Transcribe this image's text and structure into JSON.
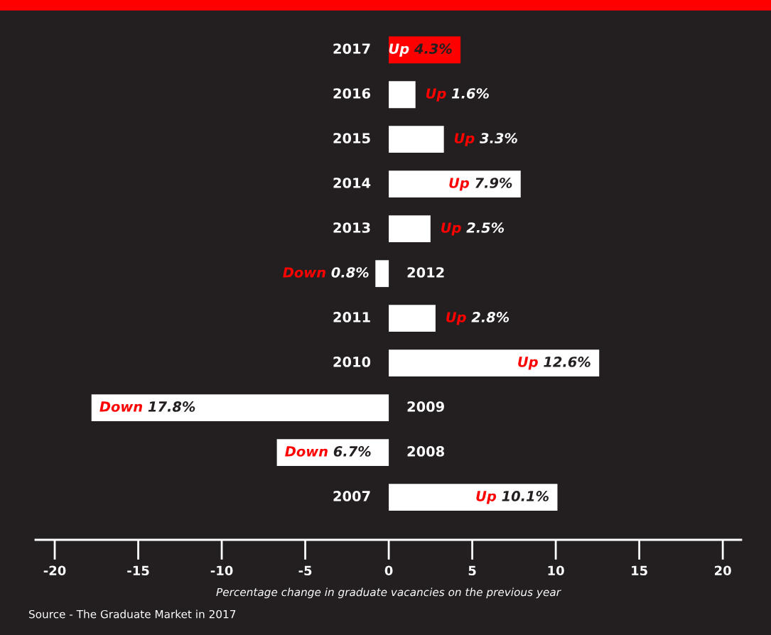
{
  "chart_data": {
    "type": "bar",
    "orientation": "horizontal",
    "categories": [
      "2017",
      "2016",
      "2015",
      "2014",
      "2013",
      "2012",
      "2011",
      "2010",
      "2009",
      "2008",
      "2007"
    ],
    "values": [
      4.3,
      1.6,
      3.3,
      7.9,
      2.5,
      -0.8,
      2.8,
      12.6,
      -17.8,
      -6.7,
      10.1
    ],
    "colors": [
      "#ff0000",
      "#ffffff",
      "#ffffff",
      "#ffffff",
      "#ffffff",
      "#ffffff",
      "#ffffff",
      "#ffffff",
      "#ffffff",
      "#ffffff",
      "#ffffff"
    ],
    "value_labels": [
      "Up 4.3%",
      "Up 1.6%",
      "Up 3.3%",
      "Up 7.9%",
      "Up 2.5%",
      "Down 0.8%",
      "Up 2.8%",
      "Up 12.6%",
      "Down 17.8%",
      "Down 6.7%",
      "Up 10.1%"
    ],
    "xlim": [
      -21.15,
      21.1
    ],
    "xticks": [
      -20,
      -15,
      -10,
      -5,
      0,
      5,
      10,
      15,
      20
    ],
    "xlabel": "Percentage change in graduate vacancies on the previous year",
    "annotations": [
      "Source - The Graduate Market in 2017"
    ],
    "grid": false
  }
}
